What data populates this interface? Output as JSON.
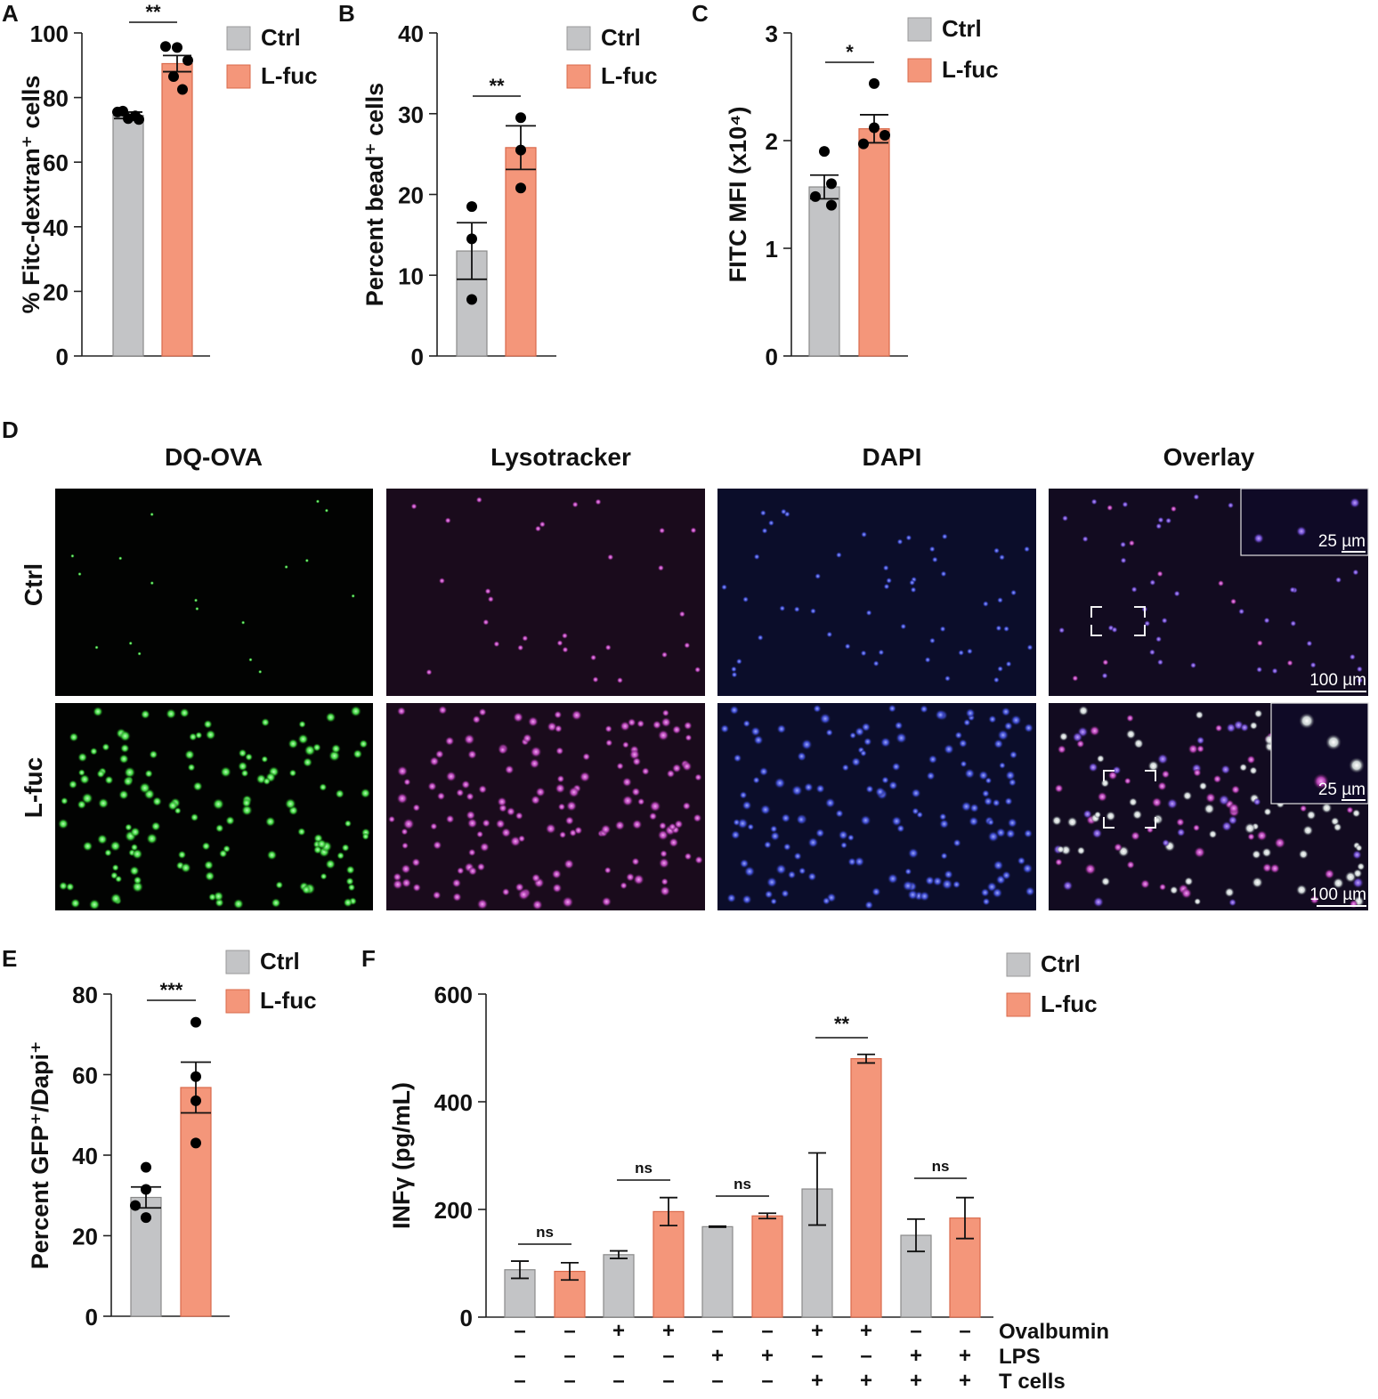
{
  "colors": {
    "ctrl": "#c3c4c6",
    "lfuc": "#f4967a",
    "axis": "#222222",
    "dot": "#000000"
  },
  "legend": {
    "ctrl": "Ctrl",
    "lfuc": "L-fuc"
  },
  "panel_labels": {
    "a": "A",
    "b": "B",
    "c": "C",
    "d": "D",
    "e": "E",
    "f": "F"
  },
  "chart_data": [
    {
      "id": "A",
      "type": "bar",
      "ylabel": "% Fitc-dextran⁺ cells",
      "ylim": [
        0,
        100
      ],
      "yticks": [
        "0",
        "20",
        "40",
        "60",
        "80",
        "100"
      ],
      "categories": [
        "Ctrl",
        "L-fuc"
      ],
      "values": [
        74.5,
        90.5
      ],
      "sem": [
        1.0,
        2.5
      ],
      "points": [
        [
          75.5,
          73.5,
          73.2,
          75.8,
          74.3
        ],
        [
          95.8,
          95.5,
          91.5,
          86.5,
          82.5
        ]
      ],
      "significance": "**"
    },
    {
      "id": "B",
      "type": "bar",
      "ylabel": "Percent bead⁺ cells",
      "ylim": [
        0,
        40
      ],
      "yticks": [
        "0",
        "10",
        "20",
        "30",
        "40"
      ],
      "categories": [
        "Ctrl",
        "L-fuc"
      ],
      "values": [
        13,
        25.8
      ],
      "sem": [
        3.5,
        2.7
      ],
      "points": [
        [
          18.5,
          14.5,
          7.0
        ],
        [
          29.5,
          25.5,
          20.8
        ]
      ],
      "significance": "**"
    },
    {
      "id": "C",
      "type": "bar",
      "ylabel": "FITC MFI (x10⁴)",
      "ylim": [
        0,
        3
      ],
      "yticks": [
        "0",
        "1",
        "2",
        "3"
      ],
      "categories": [
        "Ctrl",
        "L-fuc"
      ],
      "values": [
        1.57,
        2.11
      ],
      "sem": [
        0.11,
        0.13
      ],
      "points": [
        [
          1.9,
          1.6,
          1.48,
          1.4
        ],
        [
          2.53,
          2.05,
          2.12,
          1.97
        ]
      ],
      "significance": "*"
    },
    {
      "id": "E",
      "type": "bar",
      "ylabel": "Percent GFP⁺/Dapi⁺",
      "ylim": [
        0,
        80
      ],
      "yticks": [
        "0",
        "20",
        "40",
        "60",
        "80"
      ],
      "categories": [
        "Ctrl",
        "L-fuc"
      ],
      "values": [
        29.5,
        56.8
      ],
      "sem": [
        2.6,
        6.3
      ],
      "points": [
        [
          37,
          31.5,
          27.5,
          24.5
        ],
        [
          73,
          59.5,
          53.5,
          43
        ]
      ],
      "significance": "***"
    },
    {
      "id": "F",
      "type": "bar",
      "ylabel": "INFγ (pg/mL)",
      "ylim": [
        0,
        600
      ],
      "yticks": [
        "0",
        "200",
        "400",
        "600"
      ],
      "series": [
        {
          "name": "Ctrl",
          "values": [
            88,
            116,
            168,
            238,
            152
          ],
          "err": [
            16,
            7,
            1,
            67,
            30
          ]
        },
        {
          "name": "L-fuc",
          "values": [
            85,
            196,
            188,
            480,
            184
          ],
          "err": [
            16,
            26,
            5,
            8,
            38
          ]
        }
      ],
      "significance": [
        "ns",
        "ns",
        "ns",
        "**",
        "ns"
      ],
      "conditions": [
        {
          "label": "Ovalbumin",
          "signs": [
            "–",
            "–",
            "+",
            "+",
            "–",
            "–",
            "+",
            "+",
            "–",
            "–"
          ]
        },
        {
          "label": "LPS",
          "signs": [
            "–",
            "–",
            "–",
            "–",
            "+",
            "+",
            "–",
            "–",
            "+",
            "+"
          ]
        },
        {
          "label": "T cells",
          "signs": [
            "–",
            "–",
            "–",
            "–",
            "–",
            "–",
            "+",
            "+",
            "+",
            "+"
          ]
        }
      ]
    }
  ],
  "microscopy": {
    "columns": [
      "DQ-OVA",
      "Lysotracker",
      "DAPI",
      "Overlay"
    ],
    "rows": [
      "Ctrl",
      "L-fuc"
    ],
    "scalebar_main": "100 µm",
    "scalebar_inset": "25 µm"
  }
}
